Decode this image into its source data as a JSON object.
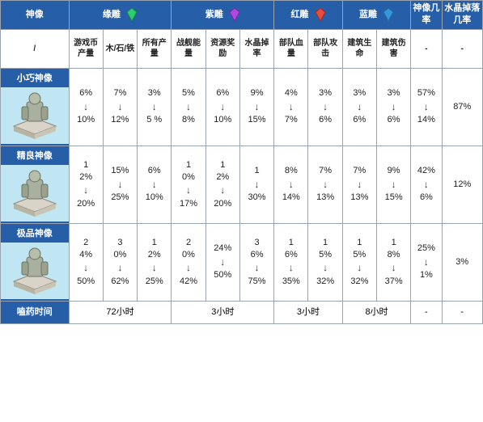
{
  "colors": {
    "header_bg": "#275ea8",
    "header_fg": "#ffffff",
    "border": "#9aa4b0",
    "statue_bg": "#bfe6f2",
    "gem_green": "#2ecc71",
    "gem_purple": "#b149e0",
    "gem_red": "#e74c3c",
    "gem_blue": "#3498db"
  },
  "header": {
    "col0": "神像",
    "green": "缘雕",
    "purple": "紫雕",
    "red": "红雕",
    "blue": "蓝雕",
    "col_prob": "神像几率",
    "col_crystal": "水晶掉落几率"
  },
  "sub": {
    "slash": "/",
    "c1": "游戏币产量",
    "c2": "木/石/铁",
    "c3": "所有产量",
    "c4": "战舰能量",
    "c5": "资源奖励",
    "c6": "水晶掉率",
    "c7": "部队血量",
    "c8": "部队攻击",
    "c9": "建筑生命",
    "c10": "建筑伤害",
    "dash": "-"
  },
  "rows": [
    {
      "name": "小巧神像",
      "cells": [
        "6%\n↓\n10%",
        "7%\n↓\n12%",
        "3%\n↓\n5 %",
        "5%\n↓\n8%",
        "6%\n↓\n10%",
        "9%\n↓\n15%",
        "4%\n↓\n7%",
        "3%\n↓\n6%",
        "3%\n↓\n6%",
        "3%\n↓\n6%",
        "57%\n↓\n14%",
        "87%"
      ]
    },
    {
      "name": "精良神像",
      "cells": [
        "1\n2%\n↓\n20%",
        "15%\n↓\n25%",
        "6%\n↓\n10%",
        "1\n0%\n↓\n17%",
        "1\n2%\n↓\n20%",
        "1\n↓\n30%",
        "8%\n↓\n14%",
        "7%\n↓\n13%",
        "7%\n↓\n13%",
        "9%\n↓\n15%",
        "42%\n↓\n6%",
        "12%"
      ]
    },
    {
      "name": "极品神像",
      "cells": [
        "2\n4%\n↓\n50%",
        "3\n0%\n↓\n62%",
        "1\n2%\n↓\n25%",
        "2\n0%\n↓\n42%",
        "24%\n↓\n50%",
        "3\n6%\n↓\n75%",
        "1\n6%\n↓\n35%",
        "1\n5%\n↓\n32%",
        "1\n5%\n↓\n32%",
        "1\n8%\n↓\n37%",
        "25%\n↓\n1%",
        "3%"
      ]
    }
  ],
  "time_row": {
    "label": "嗑药时间",
    "t_green": "72小时",
    "t_purple": "3小时",
    "t_red": "3小时",
    "t_blue": "8小时",
    "dash": "-"
  }
}
